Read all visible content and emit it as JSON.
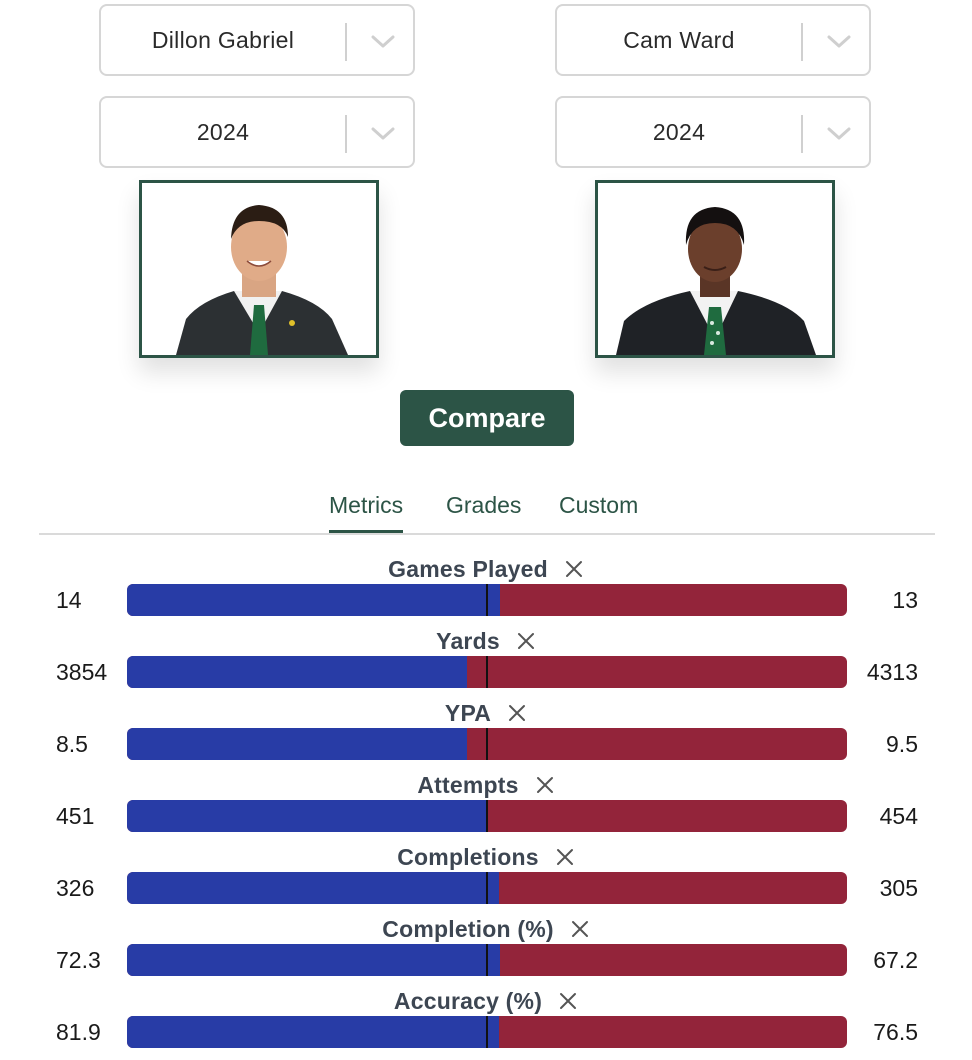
{
  "players": [
    {
      "name": "Dillon Gabriel",
      "year": "2024"
    },
    {
      "name": "Cam Ward",
      "year": "2024"
    }
  ],
  "compare_label": "Compare",
  "tabs": [
    {
      "label": "Metrics",
      "active": true
    },
    {
      "label": "Grades",
      "active": false
    },
    {
      "label": "Custom",
      "active": false
    }
  ],
  "metrics": [
    {
      "label": "Games Played",
      "left": "14",
      "right": "13",
      "left_share": 0.518
    },
    {
      "label": "Yards",
      "left": "3854",
      "right": "4313",
      "left_share": 0.472
    },
    {
      "label": "YPA",
      "left": "8.5",
      "right": "9.5",
      "left_share": 0.472
    },
    {
      "label": "Attempts",
      "left": "451",
      "right": "454",
      "left_share": 0.498
    },
    {
      "label": "Completions",
      "left": "326",
      "right": "305",
      "left_share": 0.517
    },
    {
      "label": "Completion (%)",
      "left": "72.3",
      "right": "67.2",
      "left_share": 0.518
    },
    {
      "label": "Accuracy (%)",
      "left": "81.9",
      "right": "76.5",
      "left_share": 0.517
    }
  ],
  "colors": {
    "accent": "#2c5446",
    "left_bar": "#283ca6",
    "right_bar": "#93243a",
    "label": "#3d4652"
  }
}
